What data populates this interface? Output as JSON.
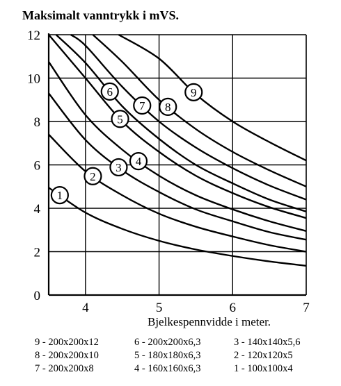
{
  "chart_data": {
    "type": "line",
    "title": "Maksimalt vanntrykk i mVS.",
    "xlabel": "Bjelkespennvidde i meter.",
    "ylabel": "",
    "xlim": [
      3.5,
      7
    ],
    "ylim": [
      0,
      12
    ],
    "xticks": [
      4,
      5,
      6,
      7
    ],
    "yticks": [
      0,
      2,
      4,
      6,
      8,
      10,
      12
    ],
    "grid": true,
    "series": [
      {
        "name": "1",
        "label": "1 - 100x100x4",
        "x": [
          3.5,
          4.0,
          4.5,
          5.0,
          5.5,
          6.0,
          6.5,
          7.0
        ],
        "y": [
          4.95,
          3.8,
          3.05,
          2.5,
          2.1,
          1.8,
          1.55,
          1.35
        ],
        "marker_x": 3.65
      },
      {
        "name": "2",
        "label": "2 - 120x120x5",
        "x": [
          3.5,
          4.0,
          4.5,
          5.0,
          5.5,
          6.0,
          6.5,
          7.0
        ],
        "y": [
          7.4,
          5.7,
          4.6,
          3.75,
          3.15,
          2.7,
          2.3,
          2.0
        ],
        "marker_x": 4.1
      },
      {
        "name": "3",
        "label": "3 - 140x140x5,6",
        "x": [
          3.5,
          4.0,
          4.5,
          5.0,
          5.5,
          6.0,
          6.5,
          7.0
        ],
        "y": [
          9.3,
          7.15,
          5.75,
          4.75,
          3.95,
          3.4,
          2.9,
          2.55
        ],
        "marker_x": 4.45
      },
      {
        "name": "4",
        "label": "4 - 160x160x6,3",
        "x": [
          3.5,
          4.0,
          4.5,
          5.0,
          5.5,
          6.0,
          6.5,
          7.0
        ],
        "y": [
          10.75,
          8.3,
          6.7,
          5.5,
          4.6,
          3.95,
          3.4,
          2.95
        ],
        "marker_x": 4.72
      },
      {
        "name": "5",
        "label": "5 - 180x180x6,3",
        "x": [
          3.5,
          4.0,
          4.5,
          5.0,
          5.5,
          6.0,
          6.5,
          7.0
        ],
        "y": [
          12.0,
          10.0,
          8.0,
          6.6,
          5.5,
          4.7,
          4.05,
          3.55
        ],
        "marker_x": 4.47
      },
      {
        "name": "6",
        "label": "6 - 200x200x6,3",
        "x": [
          3.6,
          4.0,
          4.5,
          5.0,
          5.5,
          6.0,
          6.5,
          7.0
        ],
        "y": [
          12.0,
          10.7,
          8.7,
          7.2,
          6.0,
          5.15,
          4.4,
          3.85
        ],
        "marker_x": 4.33
      },
      {
        "name": "7",
        "label": "7 - 200x200x8",
        "x": [
          3.8,
          4.0,
          4.5,
          5.0,
          5.5,
          6.0,
          6.5,
          7.0
        ],
        "y": [
          12.0,
          11.5,
          9.6,
          8.0,
          6.8,
          5.85,
          5.05,
          4.4
        ],
        "marker_x": 4.77
      },
      {
        "name": "8",
        "label": "8 - 200x200x10",
        "x": [
          4.1,
          4.5,
          5.0,
          5.5,
          6.0,
          6.5,
          7.0
        ],
        "y": [
          12.0,
          10.75,
          9.0,
          7.65,
          6.6,
          5.75,
          5.0
        ],
        "marker_x": 5.12
      },
      {
        "name": "9",
        "label": "9 - 200x200x12",
        "x": [
          4.45,
          5.0,
          5.5,
          6.0,
          6.5,
          7.0
        ],
        "y": [
          12.0,
          10.9,
          9.25,
          8.0,
          7.05,
          6.2
        ],
        "marker_x": 5.47
      }
    ],
    "legend_rows": [
      [
        "9 - 200x200x12",
        "6 - 200x200x6,3",
        "3 - 140x140x5,6"
      ],
      [
        "8 - 200x200x10",
        "5 - 180x180x6,3",
        "2 - 120x120x5"
      ],
      [
        "7 - 200x200x8",
        "4 - 160x160x6,3",
        "1 - 100x100x4"
      ]
    ],
    "legend_position": "bottom"
  }
}
